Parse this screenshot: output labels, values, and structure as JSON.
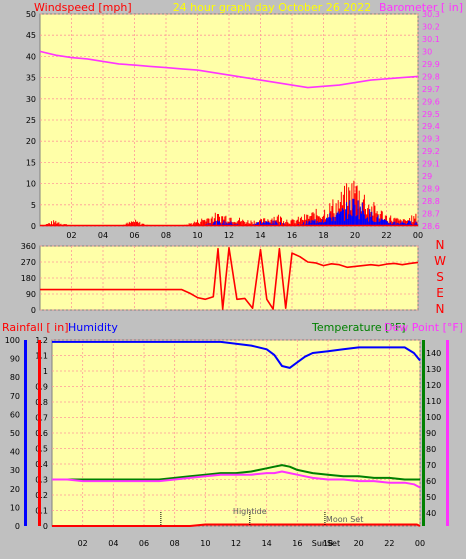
{
  "colors": {
    "background": "#c0c0c0",
    "plot_bg": "#ffffa8",
    "grid": "#ff9999",
    "red": "#ff0000",
    "magenta": "#ff33ff",
    "blue": "#0000ff",
    "green": "#008000",
    "title": "#ffff00",
    "axis_text": "#000000"
  },
  "chart_data": [
    {
      "type": "line",
      "title": "24 hour graph day   October 26 2022",
      "left_label": "Windspeed [mph]",
      "right_label": "Barometer [ in]",
      "x_ticks": [
        "02",
        "04",
        "06",
        "08",
        "10",
        "12",
        "14",
        "16",
        "18",
        "20",
        "22",
        "00"
      ],
      "ylim_left": [
        0,
        50
      ],
      "y_ticks_left": [
        "0",
        "5",
        "10",
        "15",
        "20",
        "25",
        "30",
        "35",
        "40",
        "45",
        "50"
      ],
      "ylim_right": [
        28.6,
        30.3
      ],
      "y_ticks_right": [
        "28.6",
        "28.7",
        "28.8",
        "28.9",
        "29",
        "29.1",
        "29.2",
        "29.3",
        "29.4",
        "29.5",
        "29.6",
        "29.7",
        "29.8",
        "29.9",
        "30",
        "30.1",
        "30.2",
        "30.3"
      ],
      "series": [
        {
          "axis": "right",
          "x": [
            0,
            1,
            2,
            3,
            4,
            5,
            6,
            7,
            8,
            9,
            10,
            11,
            12,
            13,
            14,
            15,
            16,
            17,
            18,
            19,
            20,
            21,
            22,
            23,
            24
          ],
          "values": [
            30.0,
            29.97,
            29.95,
            29.94,
            29.92,
            29.9,
            29.89,
            29.88,
            29.87,
            29.86,
            29.85,
            29.83,
            29.81,
            29.79,
            29.77,
            29.75,
            29.73,
            29.71,
            29.72,
            29.73,
            29.75,
            29.77,
            29.78,
            29.79,
            29.8
          ]
        },
        {
          "axis": "left",
          "x": [
            0,
            1,
            2,
            3,
            4,
            5,
            6,
            7,
            8,
            9,
            10,
            11,
            12,
            13,
            14,
            15,
            16,
            17,
            18,
            19,
            20,
            21,
            22,
            23,
            24
          ],
          "values": [
            0,
            1,
            0,
            0,
            0,
            0,
            1,
            0,
            0,
            0,
            1,
            2,
            2,
            1,
            1,
            2,
            1,
            2,
            3,
            5,
            8,
            4,
            2,
            1,
            2
          ]
        },
        {
          "axis": "left",
          "x": [
            0,
            1,
            2,
            3,
            4,
            5,
            6,
            7,
            8,
            9,
            10,
            11,
            12,
            13,
            14,
            15,
            16,
            17,
            18,
            19,
            20,
            21,
            22,
            23,
            24
          ],
          "values": [
            0,
            0,
            0,
            0,
            0,
            0,
            0,
            0,
            0,
            0,
            0,
            1,
            1,
            0,
            1,
            1,
            0,
            1,
            2,
            3,
            6,
            3,
            1,
            1,
            1
          ]
        }
      ]
    },
    {
      "type": "line",
      "title": "",
      "y_ticks": [
        "0",
        "90",
        "180",
        "270",
        "360"
      ],
      "ylim": [
        0,
        360
      ],
      "compass": [
        "N",
        "W",
        "S",
        "E",
        "N"
      ],
      "series": [
        {
          "x": [
            0,
            1,
            2,
            3,
            4,
            5,
            6,
            7,
            8,
            9,
            9.5,
            10,
            10.5,
            11,
            11.3,
            11.6,
            12,
            12.5,
            13,
            13.5,
            14,
            14.4,
            14.8,
            15.2,
            15.6,
            16,
            16.5,
            17,
            17.5,
            18,
            18.5,
            19,
            19.5,
            20,
            20.5,
            21,
            21.5,
            22,
            22.5,
            23,
            23.5,
            24
          ],
          "values": [
            115,
            115,
            115,
            115,
            115,
            115,
            115,
            115,
            115,
            115,
            95,
            70,
            60,
            75,
            345,
            5,
            350,
            60,
            65,
            10,
            340,
            60,
            5,
            345,
            10,
            320,
            300,
            270,
            265,
            250,
            260,
            255,
            240,
            245,
            250,
            255,
            250,
            258,
            262,
            255,
            262,
            268
          ]
        }
      ]
    },
    {
      "type": "line",
      "title": "",
      "labels": {
        "rainfall": "Rainfall [ in]",
        "humidity": "Humidity",
        "temperature": "Temperature [°F]",
        "dewpoint": "Dew Point [°F]",
        "hightide": "Hightide",
        "sunset": "SunSet",
        "moonset": "Moon Set"
      },
      "x_ticks": [
        "02",
        "04",
        "06",
        "08",
        "10",
        "12",
        "14",
        "16",
        "18",
        "20",
        "22",
        "00"
      ],
      "y_ticks_humidity": [
        "0",
        "10",
        "20",
        "30",
        "40",
        "50",
        "60",
        "70",
        "80",
        "90",
        "100"
      ],
      "y_ticks_rain": [
        "0",
        "0.1",
        "0.2",
        "0.3",
        "0.4",
        "0.5",
        "0.6",
        "0.7",
        "0.8",
        "0.9",
        "1",
        "1.1",
        "1.2"
      ],
      "y_ticks_temp": [
        "40",
        "50",
        "60",
        "70",
        "80",
        "90",
        "100",
        "110",
        "120",
        "130",
        "140"
      ],
      "ylim_rain": [
        0,
        1.2
      ],
      "ylim_temp": [
        32,
        148
      ],
      "series": [
        {
          "name": "Humidity",
          "axis": "humidity",
          "x": [
            0,
            1,
            2,
            3,
            4,
            5,
            6,
            7,
            8,
            9,
            10,
            11,
            12,
            13,
            14,
            14.5,
            15,
            15.5,
            16,
            16.5,
            17,
            18,
            19,
            20,
            21,
            22,
            23,
            23.6,
            24
          ],
          "values": [
            99,
            99,
            99,
            99,
            99,
            99,
            99,
            99,
            99,
            99,
            99,
            99,
            98,
            97,
            95,
            92,
            86,
            85,
            88,
            91,
            93,
            94,
            95,
            96,
            96,
            96,
            96,
            93,
            89
          ]
        },
        {
          "name": "Temperature",
          "axis": "temp",
          "x": [
            0,
            1,
            2,
            3,
            4,
            5,
            6,
            7,
            8,
            9,
            10,
            11,
            12,
            13,
            14,
            14.5,
            15,
            15.5,
            16,
            16.5,
            17,
            18,
            19,
            20,
            21,
            22,
            23,
            24
          ],
          "values": [
            61,
            61,
            61,
            61,
            61,
            61,
            61,
            61,
            62,
            63,
            64,
            65,
            65,
            66,
            68,
            69,
            70,
            69,
            67,
            66,
            65,
            64,
            63,
            63,
            62,
            62,
            61,
            61
          ]
        },
        {
          "name": "Dew Point",
          "axis": "temp",
          "x": [
            0,
            1,
            2,
            3,
            4,
            5,
            6,
            7,
            8,
            9,
            10,
            11,
            12,
            13,
            14,
            14.5,
            15,
            15.5,
            16,
            16.5,
            17,
            18,
            19,
            20,
            21,
            22,
            23,
            23.6,
            24
          ],
          "values": [
            61,
            61,
            60,
            60,
            60,
            60,
            60,
            60,
            61,
            62,
            63,
            64,
            64,
            64,
            65,
            65,
            66,
            65,
            64,
            63,
            62,
            61,
            61,
            60,
            60,
            59,
            59,
            58,
            56
          ]
        },
        {
          "name": "Rainfall",
          "axis": "rain",
          "x": [
            0,
            2,
            4,
            6,
            8,
            9,
            10,
            12,
            14,
            16,
            18,
            20,
            22,
            23.8,
            24
          ],
          "values": [
            0,
            0,
            0,
            0,
            0,
            0,
            0.01,
            0.01,
            0.01,
            0.01,
            0.01,
            0.01,
            0.01,
            0.01,
            0
          ]
        }
      ],
      "markers": [
        {
          "key": "hightide_tick",
          "x": 7.1
        },
        {
          "key": "hightide",
          "x": 12.9
        },
        {
          "key": "sunset",
          "x": 17.8
        },
        {
          "key": "moonset",
          "x": 17.8
        }
      ]
    }
  ]
}
